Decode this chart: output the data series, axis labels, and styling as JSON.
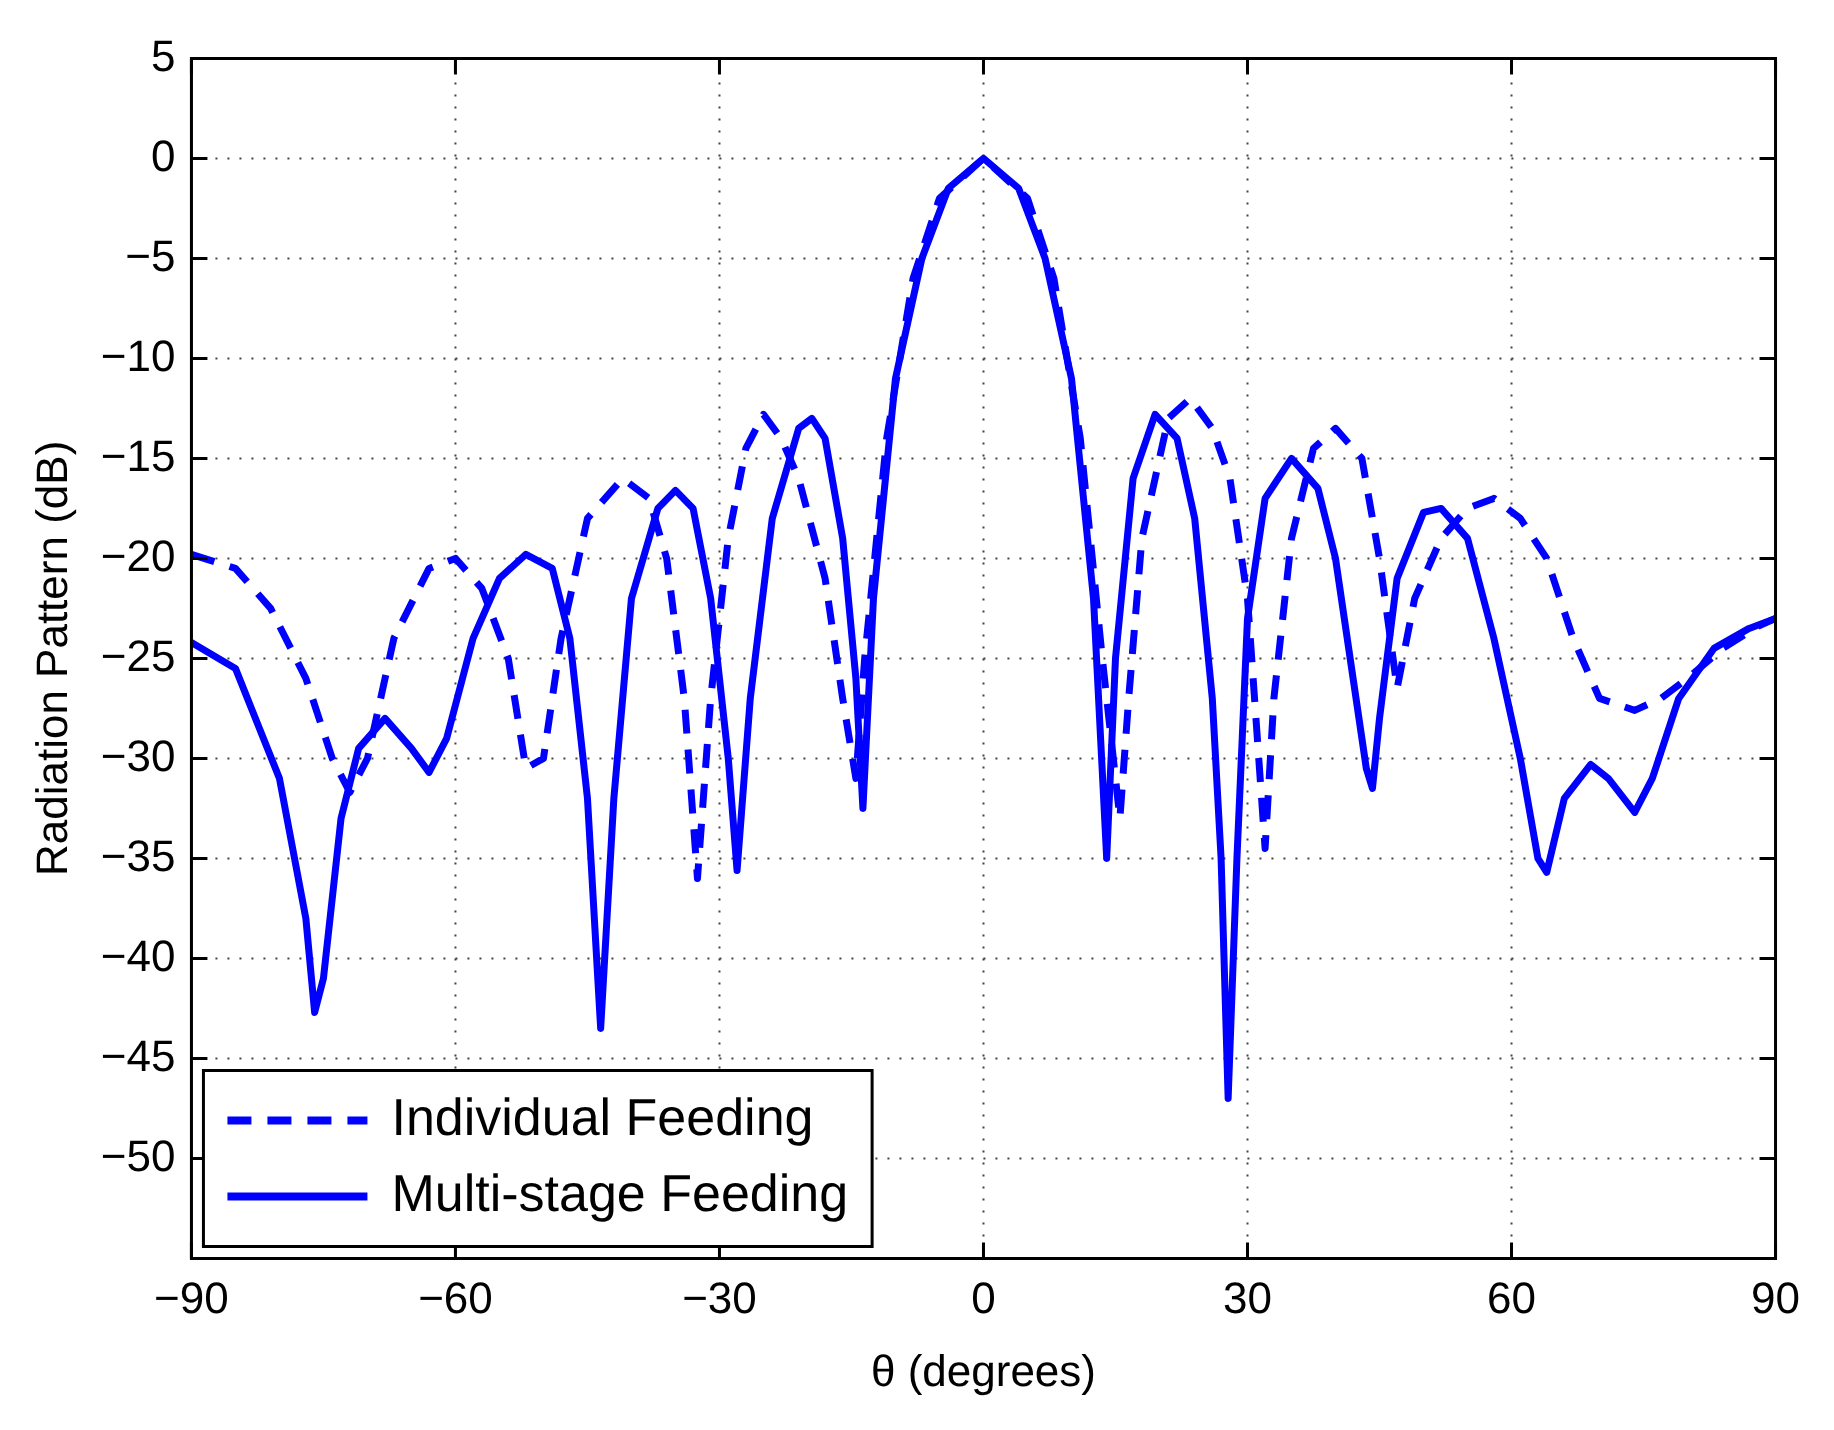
{
  "chart_data": {
    "type": "line",
    "xlabel": "θ (degrees)",
    "ylabel": "Radiation Pattern (dB)",
    "xlim": [
      -90,
      90
    ],
    "xticks": [
      {
        "value": -90,
        "label": "−90"
      },
      {
        "value": -60,
        "label": "−60"
      },
      {
        "value": -30,
        "label": "−30"
      },
      0,
      30,
      60,
      90
    ],
    "ylim": [
      -55,
      5
    ],
    "yticks": [
      {
        "value": -50,
        "label": "−50"
      },
      {
        "value": -45,
        "label": "−45"
      },
      {
        "value": -40,
        "label": "−40"
      },
      {
        "value": -35,
        "label": "−35"
      },
      {
        "value": -30,
        "label": "−30"
      },
      {
        "value": -25,
        "label": "−25"
      },
      {
        "value": -20,
        "label": "−20"
      },
      {
        "value": -15,
        "label": "−15"
      },
      {
        "value": -10,
        "label": "−10"
      },
      {
        "value": -5,
        "label": "−5"
      },
      0,
      5
    ],
    "grid": true,
    "legend": "bottom left",
    "marker": "none",
    "series": [
      {
        "name": "Individual Feeding",
        "color": "#0000ff",
        "line_style": "dashed",
        "x": [
          -90,
          -85,
          -81,
          -77,
          -74,
          -72,
          -70,
          -67,
          -63,
          -60,
          -57,
          -54,
          -52,
          -50,
          -48,
          -45,
          -41,
          -38,
          -36,
          -34,
          -32.5,
          -31,
          -29,
          -27,
          -25,
          -23,
          -21,
          -18,
          -16,
          -14.5,
          -13.5,
          -11,
          -8,
          -5,
          0,
          5,
          8,
          11,
          13.5,
          15.5,
          16.5,
          18,
          21,
          23.5,
          26,
          28,
          30,
          32,
          33,
          35,
          37.5,
          40,
          43,
          45,
          47,
          49,
          52,
          55,
          58,
          61,
          64,
          67,
          70,
          74,
          77,
          80,
          84,
          88,
          90
        ],
        "values": [
          -19.8,
          -20.5,
          -22.5,
          -26,
          -30,
          -31.7,
          -30,
          -24,
          -20.5,
          -20,
          -21.5,
          -25,
          -30.5,
          -30,
          -24,
          -18,
          -16,
          -17,
          -20,
          -27,
          -36,
          -27,
          -19,
          -14.5,
          -12.8,
          -14,
          -16,
          -21,
          -27,
          -31,
          -25,
          -14,
          -6,
          -2,
          0,
          -2,
          -6,
          -14,
          -25,
          -33,
          -27,
          -19,
          -13,
          -12,
          -13.5,
          -16,
          -22,
          -34.5,
          -27,
          -19,
          -14.5,
          -13.5,
          -15,
          -20,
          -26.5,
          -22,
          -19,
          -17.5,
          -17,
          -18,
          -20,
          -24,
          -27,
          -27.6,
          -27,
          -26,
          -24.5,
          -23.4,
          -23
        ]
      },
      {
        "name": "Multi-stage Feeding",
        "color": "#0000ff",
        "line_style": "solid",
        "x": [
          -90,
          -85,
          -80,
          -77,
          -76,
          -75,
          -73,
          -71,
          -68,
          -65,
          -63,
          -61,
          -58,
          -55,
          -52,
          -49,
          -47,
          -45,
          -43.5,
          -42,
          -40,
          -37,
          -35,
          -33,
          -31,
          -29,
          -28,
          -26.5,
          -24,
          -21,
          -19.5,
          -18,
          -16,
          -14.5,
          -13.7,
          -12.5,
          -10,
          -7,
          -4,
          0,
          4,
          7,
          10,
          12.5,
          14,
          15,
          17,
          19.5,
          22,
          24,
          26,
          27,
          27.8,
          28.8,
          30,
          32,
          35,
          38,
          40,
          42,
          43.5,
          44.2,
          45,
          47,
          50,
          52,
          55,
          58,
          61,
          63,
          64,
          66,
          69,
          71,
          74,
          76,
          79,
          83,
          87,
          90
        ],
        "values": [
          -24.2,
          -25.5,
          -31,
          -38,
          -42.7,
          -41,
          -33,
          -29.5,
          -28,
          -29.5,
          -30.7,
          -29,
          -24,
          -21,
          -19.8,
          -20.5,
          -24,
          -32,
          -43.5,
          -32,
          -22,
          -17.5,
          -16.6,
          -17.5,
          -22,
          -30,
          -35.6,
          -27,
          -18,
          -13.5,
          -13,
          -14,
          -19,
          -26,
          -32.5,
          -22,
          -11,
          -5,
          -1.5,
          0,
          -1.5,
          -5,
          -11,
          -22,
          -35,
          -25,
          -16,
          -12.8,
          -14,
          -18,
          -27,
          -35,
          -47,
          -35,
          -23,
          -17,
          -15,
          -16.5,
          -20,
          -26,
          -30.5,
          -31.5,
          -28,
          -21,
          -17.7,
          -17.5,
          -19,
          -24,
          -30,
          -35,
          -35.7,
          -32,
          -30.3,
          -31,
          -32.7,
          -31,
          -27,
          -24.5,
          -23.5,
          -23
        ]
      }
    ]
  }
}
